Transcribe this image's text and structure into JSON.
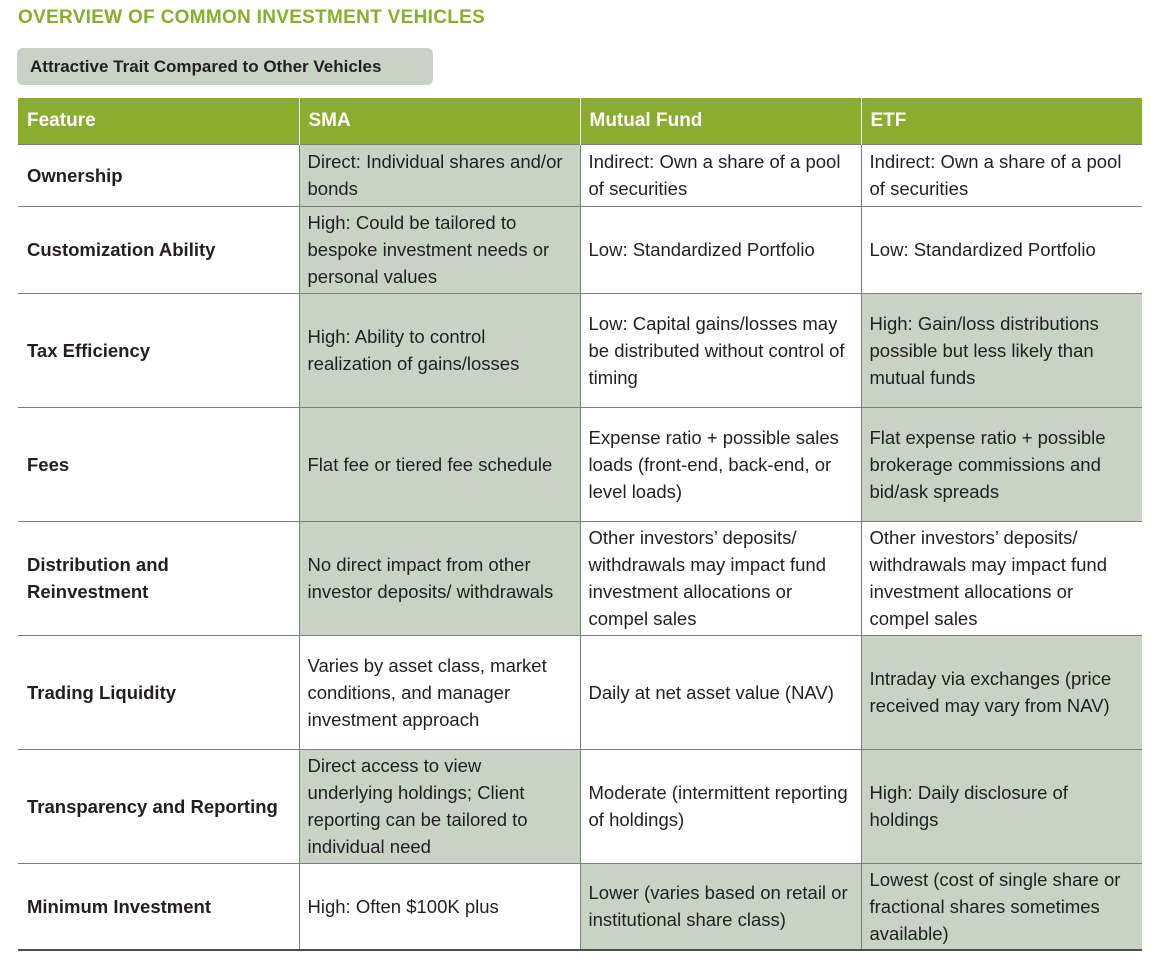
{
  "title": "OVERVIEW OF COMMON INVESTMENT VEHICLES",
  "legend_label": "Attractive Trait Compared to Other Vehicles",
  "colors": {
    "accent_green": "#8aad2f",
    "highlight": "#c8d3c4"
  },
  "table": {
    "headers": [
      "Feature",
      "SMA",
      "Mutual Fund",
      "ETF"
    ],
    "rows": [
      {
        "feature": "Ownership",
        "cells": [
          "Direct: Individual shares and/or bonds",
          "Indirect: Own a share of a pool of securities",
          "Indirect: Own a share of a pool of securities"
        ],
        "highlight": [
          true,
          false,
          false
        ]
      },
      {
        "feature": "Customization Ability",
        "cells": [
          "High: Could be tailored to bespoke investment needs or personal values",
          "Low: Standardized Portfolio",
          "Low: Standardized Portfolio"
        ],
        "highlight": [
          true,
          false,
          false
        ]
      },
      {
        "feature": "Tax Efficiency",
        "cells": [
          "High: Ability to control realization of gains/losses",
          "Low: Capital gains/losses may be distributed without control of timing",
          "High: Gain/loss distributions possible but less likely than mutual funds"
        ],
        "highlight": [
          true,
          false,
          true
        ]
      },
      {
        "feature": "Fees",
        "cells": [
          "Flat fee or tiered fee schedule",
          "Expense ratio + possible sales loads (front-end, back-end, or level loads)",
          "Flat expense ratio + possible brokerage commissions and bid/ask spreads"
        ],
        "highlight": [
          true,
          false,
          true
        ]
      },
      {
        "feature": "Distribution and Reinvestment",
        "cells": [
          "No direct impact from other investor deposits/ withdrawals",
          "Other investors’ deposits/ withdrawals may impact fund investment allocations or compel sales",
          "Other investors’ deposits/ withdrawals may impact fund investment allocations or compel sales"
        ],
        "highlight": [
          true,
          false,
          false
        ]
      },
      {
        "feature": "Trading Liquidity",
        "cells": [
          "Varies by asset class, market conditions, and manager investment approach",
          "Daily at net asset value (NAV)",
          "Intraday via exchanges (price received may vary from NAV)"
        ],
        "highlight": [
          false,
          false,
          true
        ]
      },
      {
        "feature": "Transparency and Reporting",
        "cells": [
          "Direct access to view underlying holdings; Client reporting can be tailored to individual need",
          "Moderate (intermittent reporting of holdings)",
          "High: Daily disclosure of holdings"
        ],
        "highlight": [
          true,
          false,
          true
        ]
      },
      {
        "feature": "Minimum Investment",
        "cells": [
          "High: Often $100K plus",
          "Lower (varies based on retail or institutional share class)",
          "Lowest (cost of single share or fractional shares sometimes available)"
        ],
        "highlight": [
          false,
          true,
          true
        ]
      }
    ]
  }
}
